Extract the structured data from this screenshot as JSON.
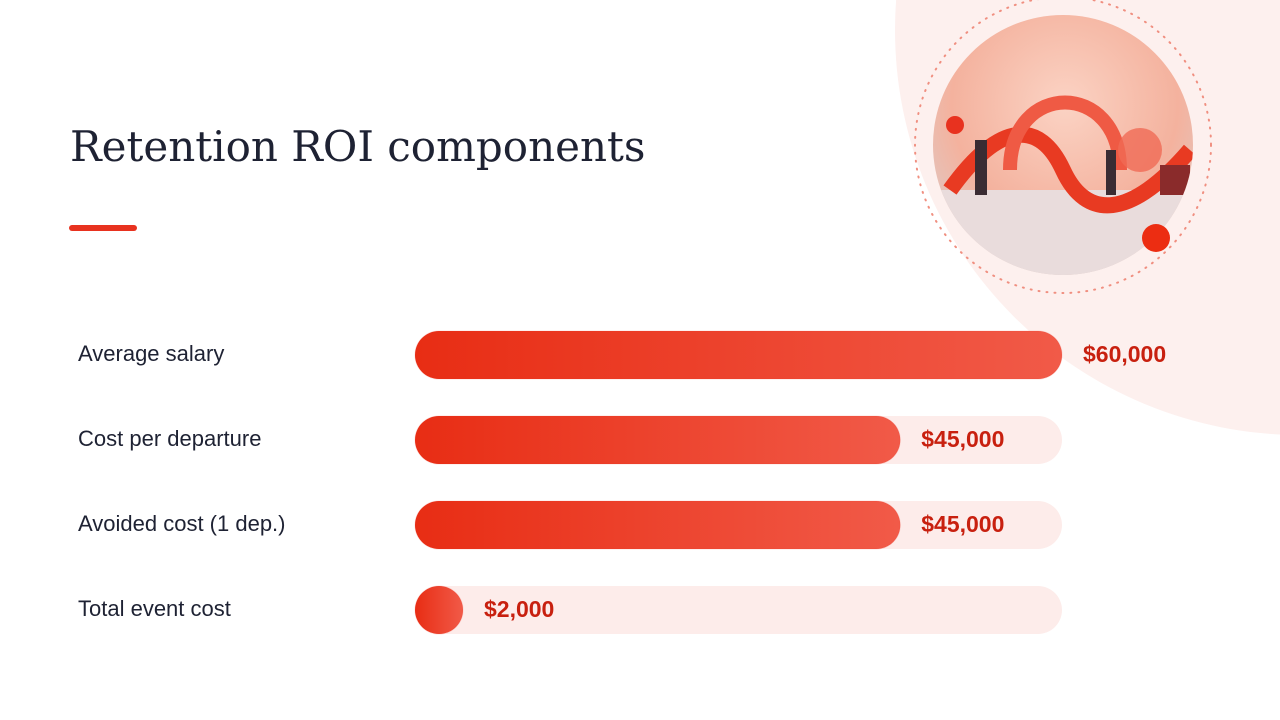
{
  "chart_data": {
    "type": "bar",
    "orientation": "horizontal",
    "title": "Retention ROI components",
    "categories": [
      "Average salary",
      "Cost per departure",
      "Avoided cost (1 dep.)",
      "Total event cost"
    ],
    "values": [
      60000,
      45000,
      45000,
      2000
    ],
    "value_labels": [
      "$60,000",
      "$45,000",
      "$45,000",
      "$2,000"
    ],
    "color": "#e8321f"
  }
}
